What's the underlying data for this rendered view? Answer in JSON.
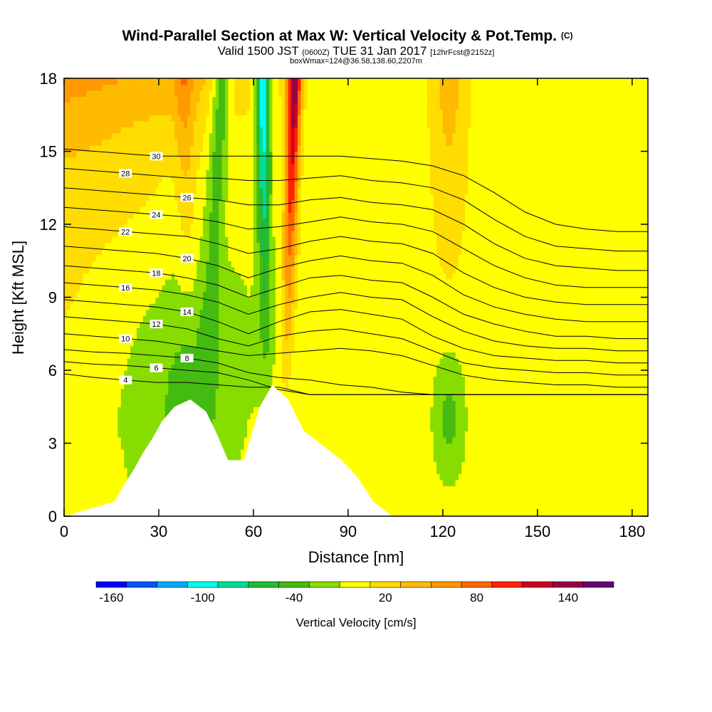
{
  "chart_data": {
    "type": "heatmap",
    "title": "Wind-Parallel Section at Max W: Vertical Velocity & Pot.Temp.",
    "title_mark": "(C)",
    "subtitle": {
      "lead": "Valid 1500 JST",
      "utc": "(0600Z)",
      "date": "TUE 31 Jan 2017",
      "fcst": "[12hrFcst@2152z]"
    },
    "subtitle2": "boxWmax=124@36.58,138.60,2207m",
    "xlabel": "Distance [nm]",
    "ylabel": "Height [Kft MSL]",
    "xlim": [
      0,
      185
    ],
    "ylim": [
      0,
      18
    ],
    "x_ticks": [
      "0",
      "30",
      "60",
      "90",
      "120",
      "150",
      "180"
    ],
    "y_ticks": [
      "0",
      "3",
      "6",
      "9",
      "12",
      "15",
      "18"
    ],
    "colorbar": {
      "label": "Vertical Velocity [cm/s]",
      "range": [
        -170,
        170
      ],
      "step": 20,
      "tick_labels": [
        "-160",
        "-100",
        "-40",
        "20",
        "80",
        "140"
      ],
      "colors": [
        "#0000ff",
        "#0055ff",
        "#00aaff",
        "#00ffee",
        "#00dd99",
        "#22bb33",
        "#44bb11",
        "#88dd00",
        "#ffff00",
        "#ffdd00",
        "#ffbb00",
        "#ff9900",
        "#ff6600",
        "#ff2200",
        "#cc0022",
        "#990044",
        "#660077"
      ]
    },
    "theta_isentropes": [
      {
        "label": "4",
        "h": [
          5.85,
          5.7,
          5.6,
          5.5,
          5.5,
          5.4,
          5.3,
          5.3,
          5.0,
          5.0,
          5.0,
          5.0,
          5.0,
          5.0,
          5.0,
          5.0,
          5.0,
          5.0,
          5.0,
          5.0
        ]
      },
      {
        "label": "6",
        "h": [
          6.35,
          6.25,
          6.2,
          6.1,
          6.0,
          5.9,
          5.6,
          5.2,
          5.0,
          5.0,
          5.0,
          5.0,
          5.0,
          5.0,
          5.0,
          5.0,
          5.0,
          5.0,
          5.0,
          5.0
        ]
      },
      {
        "label": "8",
        "h": [
          6.85,
          6.75,
          6.7,
          6.6,
          6.5,
          6.3,
          5.9,
          5.7,
          5.6,
          5.4,
          5.3,
          5.1,
          5.0,
          5.0,
          5.0,
          5.0,
          5.0,
          5.0,
          5.0,
          5.0
        ]
      },
      {
        "label": "10",
        "h": [
          7.5,
          7.4,
          7.3,
          7.2,
          7.0,
          6.8,
          6.6,
          6.7,
          6.8,
          6.9,
          6.8,
          6.6,
          6.2,
          5.8,
          5.6,
          5.5,
          5.4,
          5.4,
          5.3,
          5.3
        ]
      },
      {
        "label": "12",
        "h": [
          8.2,
          8.1,
          8.0,
          7.9,
          7.7,
          7.3,
          7.0,
          7.4,
          7.6,
          7.7,
          7.5,
          7.3,
          6.8,
          6.3,
          6.1,
          6.0,
          5.9,
          5.9,
          5.8,
          5.8
        ]
      },
      {
        "label": "14",
        "h": [
          8.9,
          8.8,
          8.7,
          8.6,
          8.4,
          8.0,
          7.5,
          8.0,
          8.4,
          8.5,
          8.3,
          8.1,
          7.4,
          6.9,
          6.6,
          6.5,
          6.4,
          6.4,
          6.3,
          6.3
        ]
      },
      {
        "label": "16",
        "h": [
          9.6,
          9.5,
          9.4,
          9.3,
          9.1,
          8.8,
          8.3,
          8.7,
          9.0,
          9.2,
          9.0,
          8.9,
          8.2,
          7.6,
          7.2,
          7.0,
          6.9,
          6.9,
          6.8,
          6.8
        ]
      },
      {
        "label": "18",
        "h": [
          10.3,
          10.2,
          10.1,
          10.0,
          9.8,
          9.5,
          9.0,
          9.4,
          9.8,
          9.9,
          9.7,
          9.6,
          9.0,
          8.3,
          7.9,
          7.6,
          7.4,
          7.4,
          7.3,
          7.3
        ]
      },
      {
        "label": "20",
        "h": [
          11.1,
          11.0,
          10.9,
          10.8,
          10.6,
          10.3,
          9.8,
          10.2,
          10.5,
          10.7,
          10.5,
          10.4,
          9.9,
          9.1,
          8.6,
          8.3,
          8.1,
          8.0,
          8.0,
          8.0
        ]
      },
      {
        "label": "22",
        "h": [
          11.9,
          11.8,
          11.7,
          11.6,
          11.5,
          11.2,
          10.8,
          11.0,
          11.3,
          11.5,
          11.3,
          11.2,
          10.8,
          10.0,
          9.4,
          9.0,
          8.8,
          8.7,
          8.7,
          8.7
        ]
      },
      {
        "label": "24",
        "h": [
          12.7,
          12.6,
          12.5,
          12.4,
          12.3,
          12.1,
          11.8,
          11.9,
          12.1,
          12.3,
          12.1,
          12.0,
          11.7,
          11.0,
          10.3,
          9.8,
          9.5,
          9.4,
          9.4,
          9.4
        ]
      },
      {
        "label": "26",
        "h": [
          13.5,
          13.4,
          13.3,
          13.2,
          13.1,
          13.0,
          12.8,
          12.8,
          13.0,
          13.1,
          12.9,
          12.8,
          12.6,
          12.0,
          11.2,
          10.6,
          10.3,
          10.2,
          10.1,
          10.1
        ]
      },
      {
        "label": "28",
        "h": [
          14.3,
          14.2,
          14.1,
          14.0,
          13.9,
          13.9,
          13.8,
          13.8,
          13.9,
          14.0,
          13.8,
          13.7,
          13.5,
          13.0,
          12.2,
          11.5,
          11.1,
          11.0,
          10.9,
          10.9
        ]
      },
      {
        "label": "30",
        "h": [
          15.1,
          15.0,
          14.9,
          14.8,
          14.8,
          14.8,
          14.8,
          14.8,
          14.8,
          14.8,
          14.7,
          14.6,
          14.4,
          14.0,
          13.3,
          12.5,
          12.0,
          11.8,
          11.7,
          11.7
        ]
      }
    ],
    "vertical_velocity": [
      [
        0,
        -3,
        -8,
        -15,
        -25,
        -10,
        -2,
        0,
        0,
        0,
        0,
        0,
        0,
        0,
        0,
        0,
        0,
        0,
        0,
        0
      ],
      [
        0,
        -4,
        -10,
        -20,
        -35,
        -18,
        -6,
        -2,
        0,
        0,
        0,
        0,
        0,
        0,
        0,
        0,
        0,
        0,
        0,
        0
      ],
      [
        0,
        -5,
        -12,
        -25,
        -45,
        -28,
        -10,
        -4,
        0,
        0,
        0,
        0,
        0,
        0,
        0,
        0,
        0,
        0,
        0,
        0
      ],
      [
        5,
        -3,
        -10,
        -22,
        -40,
        -30,
        -14,
        -5,
        -1,
        0,
        0,
        0,
        0,
        0,
        0,
        0,
        0,
        0,
        0,
        0
      ],
      [
        10,
        2,
        -5,
        -15,
        -30,
        -25,
        -12,
        -5,
        -2,
        0,
        0,
        0,
        0,
        0,
        0,
        0,
        0,
        0,
        0,
        0
      ],
      [
        15,
        8,
        2,
        -5,
        -15,
        -14,
        -8,
        -3,
        -1,
        0,
        0,
        0,
        0,
        0,
        0,
        0,
        0,
        0,
        0,
        0
      ],
      [
        20,
        15,
        10,
        5,
        -5,
        -3,
        0,
        0,
        0,
        0,
        0,
        0,
        0,
        0,
        0,
        0,
        0,
        0,
        0,
        0
      ],
      [
        25,
        22,
        18,
        12,
        5,
        2,
        1,
        0,
        0,
        0,
        0,
        0,
        0,
        0,
        0,
        0,
        0,
        0,
        0,
        0
      ],
      [
        40,
        35,
        30,
        25,
        20,
        12,
        6,
        3,
        1,
        0,
        0,
        0,
        0,
        0,
        0,
        0,
        0,
        0,
        0,
        0
      ],
      [
        60,
        55,
        50,
        45,
        40,
        30,
        20,
        10,
        4,
        1,
        0,
        0,
        0,
        0,
        0,
        0,
        0,
        0,
        0,
        0
      ]
    ],
    "terrain_heights": [
      [
        0,
        0
      ],
      [
        16,
        0.6
      ],
      [
        19,
        1.3
      ],
      [
        22,
        1.9
      ],
      [
        25,
        2.6
      ],
      [
        28,
        3.2
      ],
      [
        31,
        3.9
      ],
      [
        35,
        4.5
      ],
      [
        40,
        4.8
      ],
      [
        45,
        4.3
      ],
      [
        48,
        3.5
      ],
      [
        52,
        2.3
      ],
      [
        57,
        2.3
      ],
      [
        62,
        4.5
      ],
      [
        66,
        5.4
      ],
      [
        71,
        4.8
      ],
      [
        76,
        3.5
      ],
      [
        82,
        2.9
      ],
      [
        88,
        2.3
      ],
      [
        93,
        1.6
      ],
      [
        98,
        0.6
      ],
      [
        104,
        0
      ],
      [
        185,
        0
      ]
    ]
  }
}
